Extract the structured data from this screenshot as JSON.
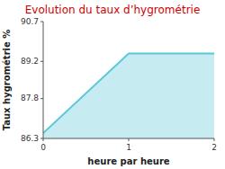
{
  "chart_data": {
    "type": "area",
    "title": "Evolution du taux d’hygrométrie",
    "xlabel": "heure par heure",
    "ylabel": "Taux hygrométrie %",
    "x": [
      0,
      1,
      2
    ],
    "values": [
      86.5,
      89.5,
      89.5
    ],
    "color": "#5bc8d8",
    "xlim": [
      0,
      2
    ],
    "ylim": [
      86.3,
      90.7
    ],
    "xticks": [
      0,
      1,
      2
    ],
    "yticks": [
      86.3,
      87.8,
      89.2,
      90.7
    ],
    "grid": false
  }
}
